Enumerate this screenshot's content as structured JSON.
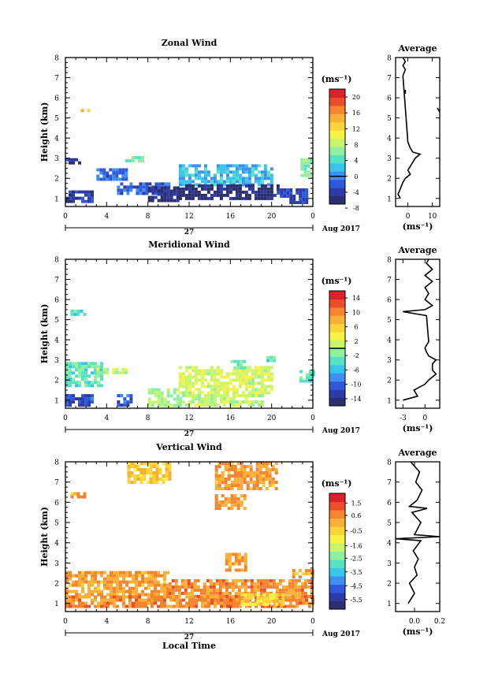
{
  "chart_data": [
    {
      "type": "heatmap",
      "title": "Zonal Wind",
      "ylabel": "Height (km)",
      "ylim": [
        0.6,
        8
      ],
      "y_ticks": [
        "1",
        "2",
        "3",
        "4",
        "5",
        "6",
        "7",
        "8"
      ],
      "x_ticks": [
        "0",
        "4",
        "8",
        "12",
        "16",
        "20",
        "0"
      ],
      "xlim": [
        0,
        24
      ],
      "date_center": "27",
      "date_right": "Aug 2017",
      "units": "(ms⁻¹)",
      "colorbar": {
        "min": -7,
        "max": 22,
        "ticks": [
          "20",
          "16",
          "12",
          "8",
          "4",
          "0",
          "-4",
          "-8"
        ],
        "tick_values": [
          20,
          16,
          12,
          8,
          4,
          0,
          -4,
          -8
        ],
        "zero_line": 0
      },
      "regions": [
        {
          "t": [
            1.5,
            2.2
          ],
          "h": [
            5.3,
            5.6
          ],
          "v": 13
        },
        {
          "t": [
            0,
            1.5
          ],
          "h": [
            2.7,
            3.0
          ],
          "v": -4
        },
        {
          "t": [
            0,
            2.5
          ],
          "h": [
            0.8,
            1.4
          ],
          "v": -4
        },
        {
          "t": [
            3,
            6
          ],
          "h": [
            1.9,
            2.5
          ],
          "v": -1
        },
        {
          "t": [
            5,
            10
          ],
          "h": [
            1.2,
            1.8
          ],
          "v": -2
        },
        {
          "t": [
            5.5,
            7.5
          ],
          "h": [
            2.8,
            3.1
          ],
          "v": 5
        },
        {
          "t": [
            8,
            11
          ],
          "h": [
            0.9,
            1.6
          ],
          "v": -5
        },
        {
          "t": [
            11,
            20
          ],
          "h": [
            1.7,
            2.7
          ],
          "v": 2
        },
        {
          "t": [
            11,
            20.5
          ],
          "h": [
            1.0,
            1.7
          ],
          "v": -6
        },
        {
          "t": [
            20.5,
            23.5
          ],
          "h": [
            0.8,
            1.5
          ],
          "v": -3
        },
        {
          "t": [
            22.8,
            24
          ],
          "h": [
            2.2,
            3.0
          ],
          "v": 6
        }
      ],
      "average_profile": {
        "title": "Average",
        "xlabel": "(ms⁻¹)",
        "x_ticks": [
          "0",
          "10"
        ],
        "xlim": [
          -5,
          13
        ],
        "profile": [
          [
            1.0,
            -3
          ],
          [
            1.2,
            -4
          ],
          [
            1.5,
            -3
          ],
          [
            1.8,
            -2
          ],
          [
            2.0,
            -1
          ],
          [
            2.2,
            1
          ],
          [
            2.4,
            0
          ],
          [
            2.6,
            1
          ],
          [
            2.8,
            2
          ],
          [
            3.0,
            3
          ],
          [
            3.2,
            5
          ],
          [
            3.3,
            2
          ],
          [
            3.5,
            1
          ],
          [
            3.8,
            0
          ],
          [
            7.1,
            -2
          ],
          [
            7.4,
            -1
          ],
          [
            7.6,
            -2
          ],
          [
            7.8,
            -1
          ],
          [
            8.0,
            -2
          ]
        ],
        "segments": [
          [
            [
              6.2,
              -1
            ],
            [
              6.4,
              -1
            ]
          ],
          [
            [
              5.5,
              12
            ],
            [
              5.3,
              13
            ]
          ]
        ]
      }
    },
    {
      "type": "heatmap",
      "title": "Meridional Wind",
      "ylabel": "Height (km)",
      "ylim": [
        0.6,
        8
      ],
      "y_ticks": [
        "1",
        "2",
        "3",
        "4",
        "5",
        "6",
        "7",
        "8"
      ],
      "x_ticks": [
        "0",
        "4",
        "8",
        "12",
        "16",
        "20",
        "0"
      ],
      "xlim": [
        0,
        24
      ],
      "date_center": "27",
      "date_right": "Aug 2017",
      "units": "(ms⁻¹)",
      "colorbar": {
        "min": -16,
        "max": 16,
        "ticks": [
          "14",
          "10",
          "6",
          "2",
          "-2",
          "-6",
          "-10",
          "-14"
        ],
        "tick_values": [
          14,
          10,
          6,
          2,
          -2,
          -6,
          -10,
          -14
        ],
        "zero_line": 0
      },
      "regions": [
        {
          "t": [
            0.5,
            2.0
          ],
          "h": [
            5.3,
            5.5
          ],
          "v": -3
        },
        {
          "t": [
            0,
            3.5
          ],
          "h": [
            1.8,
            2.9
          ],
          "v": -3
        },
        {
          "t": [
            0,
            2.5
          ],
          "h": [
            0.8,
            1.3
          ],
          "v": -11
        },
        {
          "t": [
            5,
            6.5
          ],
          "h": [
            0.8,
            1.3
          ],
          "v": -10
        },
        {
          "t": [
            3,
            6
          ],
          "h": [
            2.3,
            2.6
          ],
          "v": 1
        },
        {
          "t": [
            8,
            11
          ],
          "h": [
            0.8,
            1.6
          ],
          "v": 0
        },
        {
          "t": [
            11,
            20
          ],
          "h": [
            1.3,
            2.7
          ],
          "v": 2
        },
        {
          "t": [
            11,
            19
          ],
          "h": [
            0.8,
            1.3
          ],
          "v": 1
        },
        {
          "t": [
            16,
            17.5
          ],
          "h": [
            2.6,
            3.0
          ],
          "v": -2
        },
        {
          "t": [
            19.5,
            20.2
          ],
          "h": [
            2.9,
            3.2
          ],
          "v": -3
        },
        {
          "t": [
            22.7,
            24
          ],
          "h": [
            1.9,
            2.5
          ],
          "v": -3
        }
      ],
      "average_profile": {
        "title": "Average",
        "xlabel": "(ms⁻¹)",
        "x_ticks": [
          "-3",
          "0"
        ],
        "xlim": [
          -4,
          2
        ],
        "profile": [
          [
            1.0,
            -3
          ],
          [
            1.2,
            -1
          ],
          [
            1.5,
            -1.5
          ],
          [
            1.8,
            0
          ],
          [
            2.0,
            0.5
          ],
          [
            2.3,
            1.5
          ],
          [
            2.5,
            1
          ],
          [
            2.8,
            1
          ],
          [
            3.0,
            1.5
          ],
          [
            3.2,
            0.5
          ],
          [
            3.4,
            0.2
          ],
          [
            3.6,
            0
          ],
          [
            3.9,
            0.5
          ],
          [
            5.2,
            0.2
          ],
          [
            5.4,
            -3
          ],
          [
            5.5,
            0
          ],
          [
            5.7,
            1
          ],
          [
            6.0,
            0
          ],
          [
            6.3,
            0.5
          ],
          [
            6.6,
            0
          ],
          [
            6.9,
            1
          ],
          [
            7.2,
            0
          ],
          [
            7.5,
            1
          ],
          [
            7.8,
            0.2
          ],
          [
            8.0,
            0.5
          ]
        ],
        "segments": []
      }
    },
    {
      "type": "heatmap",
      "title": "Vertical Wind",
      "ylabel": "Height (km)",
      "ylim": [
        0.6,
        8
      ],
      "y_ticks": [
        "1",
        "2",
        "3",
        "4",
        "5",
        "6",
        "7",
        "8"
      ],
      "x_ticks": [
        "0",
        "4",
        "8",
        "12",
        "16",
        "20",
        "0"
      ],
      "xlim": [
        0,
        24
      ],
      "xlabel": "Local Time",
      "date_center": "27",
      "date_right": "Aug 2017",
      "units": "(ms⁻¹)",
      "colorbar": {
        "min": -6.2,
        "max": 2.2,
        "ticks": [
          "1.5",
          "0.6",
          "-0.5",
          "-1.6",
          "-2.5",
          "-3.5",
          "-4.5",
          "-5.5"
        ],
        "tick_values": [
          1.5,
          0.6,
          -0.5,
          -1.6,
          -2.5,
          -3.5,
          -4.5,
          -5.5
        ],
        "zero_line": null
      },
      "regions": [
        {
          "t": [
            6,
            10
          ],
          "h": [
            7.0,
            8.0
          ],
          "v": -0.3
        },
        {
          "t": [
            14.5,
            20.5
          ],
          "h": [
            6.6,
            8.0
          ],
          "v": 0.3
        },
        {
          "t": [
            14.5,
            17.5
          ],
          "h": [
            5.7,
            6.4
          ],
          "v": 0.4
        },
        {
          "t": [
            0.5,
            2.0
          ],
          "h": [
            6.3,
            6.5
          ],
          "v": 0.2
        },
        {
          "t": [
            15.5,
            17.5
          ],
          "h": [
            2.6,
            3.5
          ],
          "v": 0.3
        },
        {
          "t": [
            0,
            10
          ],
          "h": [
            1.4,
            2.6
          ],
          "v": 0.3
        },
        {
          "t": [
            0,
            24
          ],
          "h": [
            0.8,
            1.4
          ],
          "v": 0.6
        },
        {
          "t": [
            10,
            24
          ],
          "h": [
            1.4,
            2.2
          ],
          "v": 0.6
        },
        {
          "t": [
            22,
            24
          ],
          "h": [
            2.3,
            2.7
          ],
          "v": 0.3
        },
        {
          "t": [
            17,
            21
          ],
          "h": [
            1.0,
            1.5
          ],
          "v": -0.6
        }
      ],
      "average_profile": {
        "title": "Average",
        "xlabel": "(ms⁻¹)",
        "x_ticks": [
          "0.0",
          "0.2"
        ],
        "xlim": [
          -0.15,
          0.2
        ],
        "profile": [
          [
            1.0,
            -0.05
          ],
          [
            1.5,
            0.0
          ],
          [
            2.0,
            -0.04
          ],
          [
            2.4,
            0.02
          ],
          [
            2.8,
            0.0
          ],
          [
            3.2,
            0.03
          ],
          [
            3.6,
            -0.01
          ],
          [
            4.1,
            0.05
          ],
          [
            4.2,
            -0.15
          ],
          [
            4.3,
            0.2
          ],
          [
            4.4,
            0.0
          ],
          [
            5.0,
            0.05
          ],
          [
            5.5,
            -0.02
          ],
          [
            5.7,
            0.1
          ],
          [
            5.8,
            -0.04
          ],
          [
            6.1,
            0.02
          ],
          [
            6.6,
            0.06
          ],
          [
            7.0,
            0.01
          ],
          [
            7.5,
            0.04
          ],
          [
            8.0,
            -0.03
          ]
        ],
        "segments": []
      }
    }
  ]
}
